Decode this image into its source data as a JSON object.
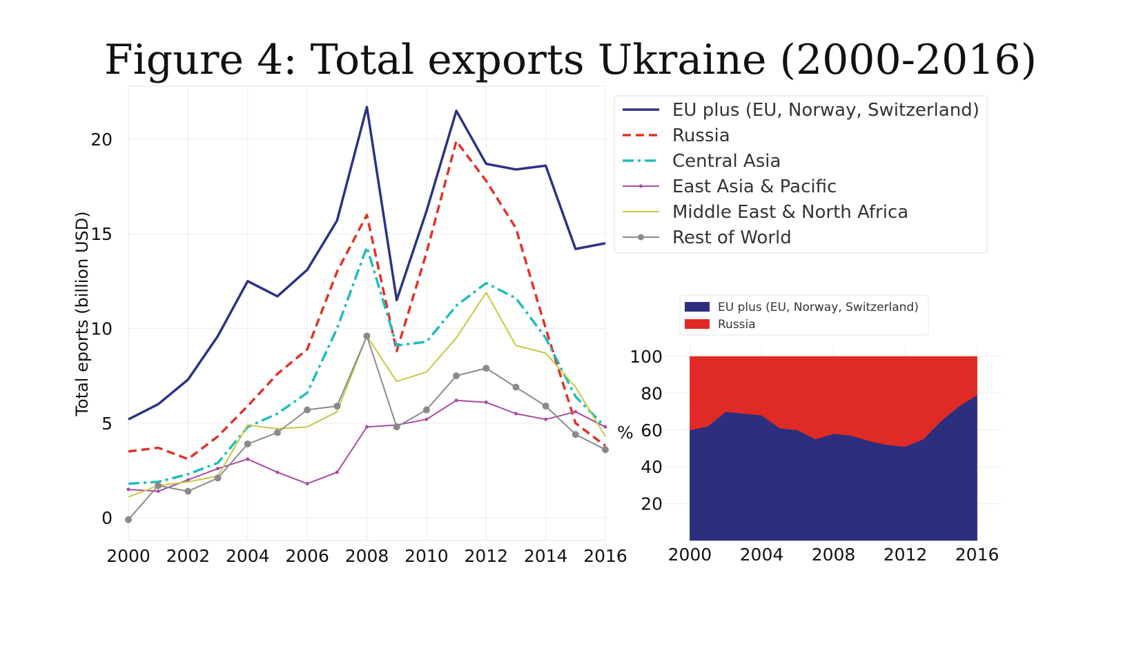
{
  "title": "Figure 4: Total exports Ukraine (2000-2016)",
  "chart_data": [
    {
      "type": "line",
      "ylabel": "Total eports (billion USD)",
      "xlabel": "",
      "xlim": [
        2000,
        2016
      ],
      "ylim": [
        -1.2,
        22.8
      ],
      "grid": true,
      "legend_position": "top-right",
      "x": [
        2000,
        2001,
        2002,
        2003,
        2004,
        2005,
        2006,
        2007,
        2008,
        2009,
        2010,
        2011,
        2012,
        2013,
        2014,
        2015,
        2016
      ],
      "x_ticks": [
        "2000",
        "2002",
        "2004",
        "2006",
        "2008",
        "2010",
        "2012",
        "2014",
        "2016"
      ],
      "y_ticks": [
        "0",
        "5",
        "10",
        "15",
        "20"
      ],
      "series": [
        {
          "name": "EU plus (EU, Norway, Switzerland)",
          "color": "#2b3283",
          "style": "solid",
          "values": [
            5.2,
            6.0,
            7.3,
            9.6,
            12.5,
            11.7,
            13.1,
            15.7,
            21.7,
            11.5,
            16.2,
            21.5,
            18.7,
            18.4,
            18.6,
            14.2,
            14.5
          ]
        },
        {
          "name": "Russia",
          "color": "#e03127",
          "style": "dashed",
          "values": [
            3.5,
            3.7,
            3.1,
            4.3,
            5.9,
            7.6,
            8.9,
            13.0,
            16.0,
            8.8,
            14.0,
            19.9,
            17.8,
            15.3,
            10.0,
            5.0,
            3.8
          ]
        },
        {
          "name": "Central Asia",
          "color": "#20bbbb",
          "style": "dashdot",
          "values": [
            1.8,
            1.9,
            2.3,
            2.9,
            4.8,
            5.5,
            6.6,
            10.0,
            14.3,
            9.1,
            9.3,
            11.2,
            12.4,
            11.6,
            9.5,
            6.4,
            4.8
          ]
        },
        {
          "name": "East Asia & Pacific",
          "color": "#a94aa6",
          "style": "solid-small-marker",
          "values": [
            1.5,
            1.4,
            2.0,
            2.6,
            3.1,
            2.4,
            1.8,
            2.4,
            4.8,
            4.9,
            5.2,
            6.2,
            6.1,
            5.5,
            5.2,
            5.6,
            4.8
          ]
        },
        {
          "name": "Middle East & North Africa",
          "color": "#c8c83e",
          "style": "solid",
          "values": [
            1.1,
            1.7,
            1.9,
            2.2,
            4.9,
            4.7,
            4.8,
            5.6,
            9.6,
            7.2,
            7.7,
            9.5,
            11.9,
            9.1,
            8.7,
            6.9,
            4.3
          ]
        },
        {
          "name": "Rest of World",
          "color": "#8a8a8a",
          "style": "solid-marker",
          "values": [
            -0.1,
            1.7,
            1.4,
            2.1,
            3.9,
            4.5,
            5.7,
            5.9,
            9.6,
            4.8,
            5.7,
            7.5,
            7.9,
            6.9,
            5.9,
            4.4,
            3.6
          ]
        }
      ]
    },
    {
      "type": "area",
      "stacked": true,
      "ylabel": "%",
      "xlabel": "",
      "xlim": [
        1998.6,
        2017.4
      ],
      "ylim": [
        0,
        100
      ],
      "grid": true,
      "legend_position": "top-left",
      "x": [
        2000,
        2001,
        2002,
        2003,
        2004,
        2005,
        2006,
        2007,
        2008,
        2009,
        2010,
        2011,
        2012,
        2013,
        2014,
        2015,
        2016
      ],
      "x_ticks": [
        "2000",
        "2004",
        "2008",
        "2012",
        "2016"
      ],
      "y_ticks": [
        "20",
        "40",
        "60",
        "80",
        "100"
      ],
      "series": [
        {
          "name": "EU plus (EU, Norway, Switzerland)",
          "color": "#2b2f7d",
          "values": [
            60,
            62,
            70,
            69,
            68,
            61,
            60,
            55,
            58,
            57,
            54,
            52,
            51,
            55,
            65,
            73,
            79
          ]
        },
        {
          "name": "Russia",
          "color": "#e02a26",
          "values": [
            40,
            38,
            30,
            31,
            32,
            39,
            40,
            45,
            42,
            43,
            46,
            48,
            49,
            45,
            35,
            27,
            21
          ]
        }
      ]
    }
  ]
}
